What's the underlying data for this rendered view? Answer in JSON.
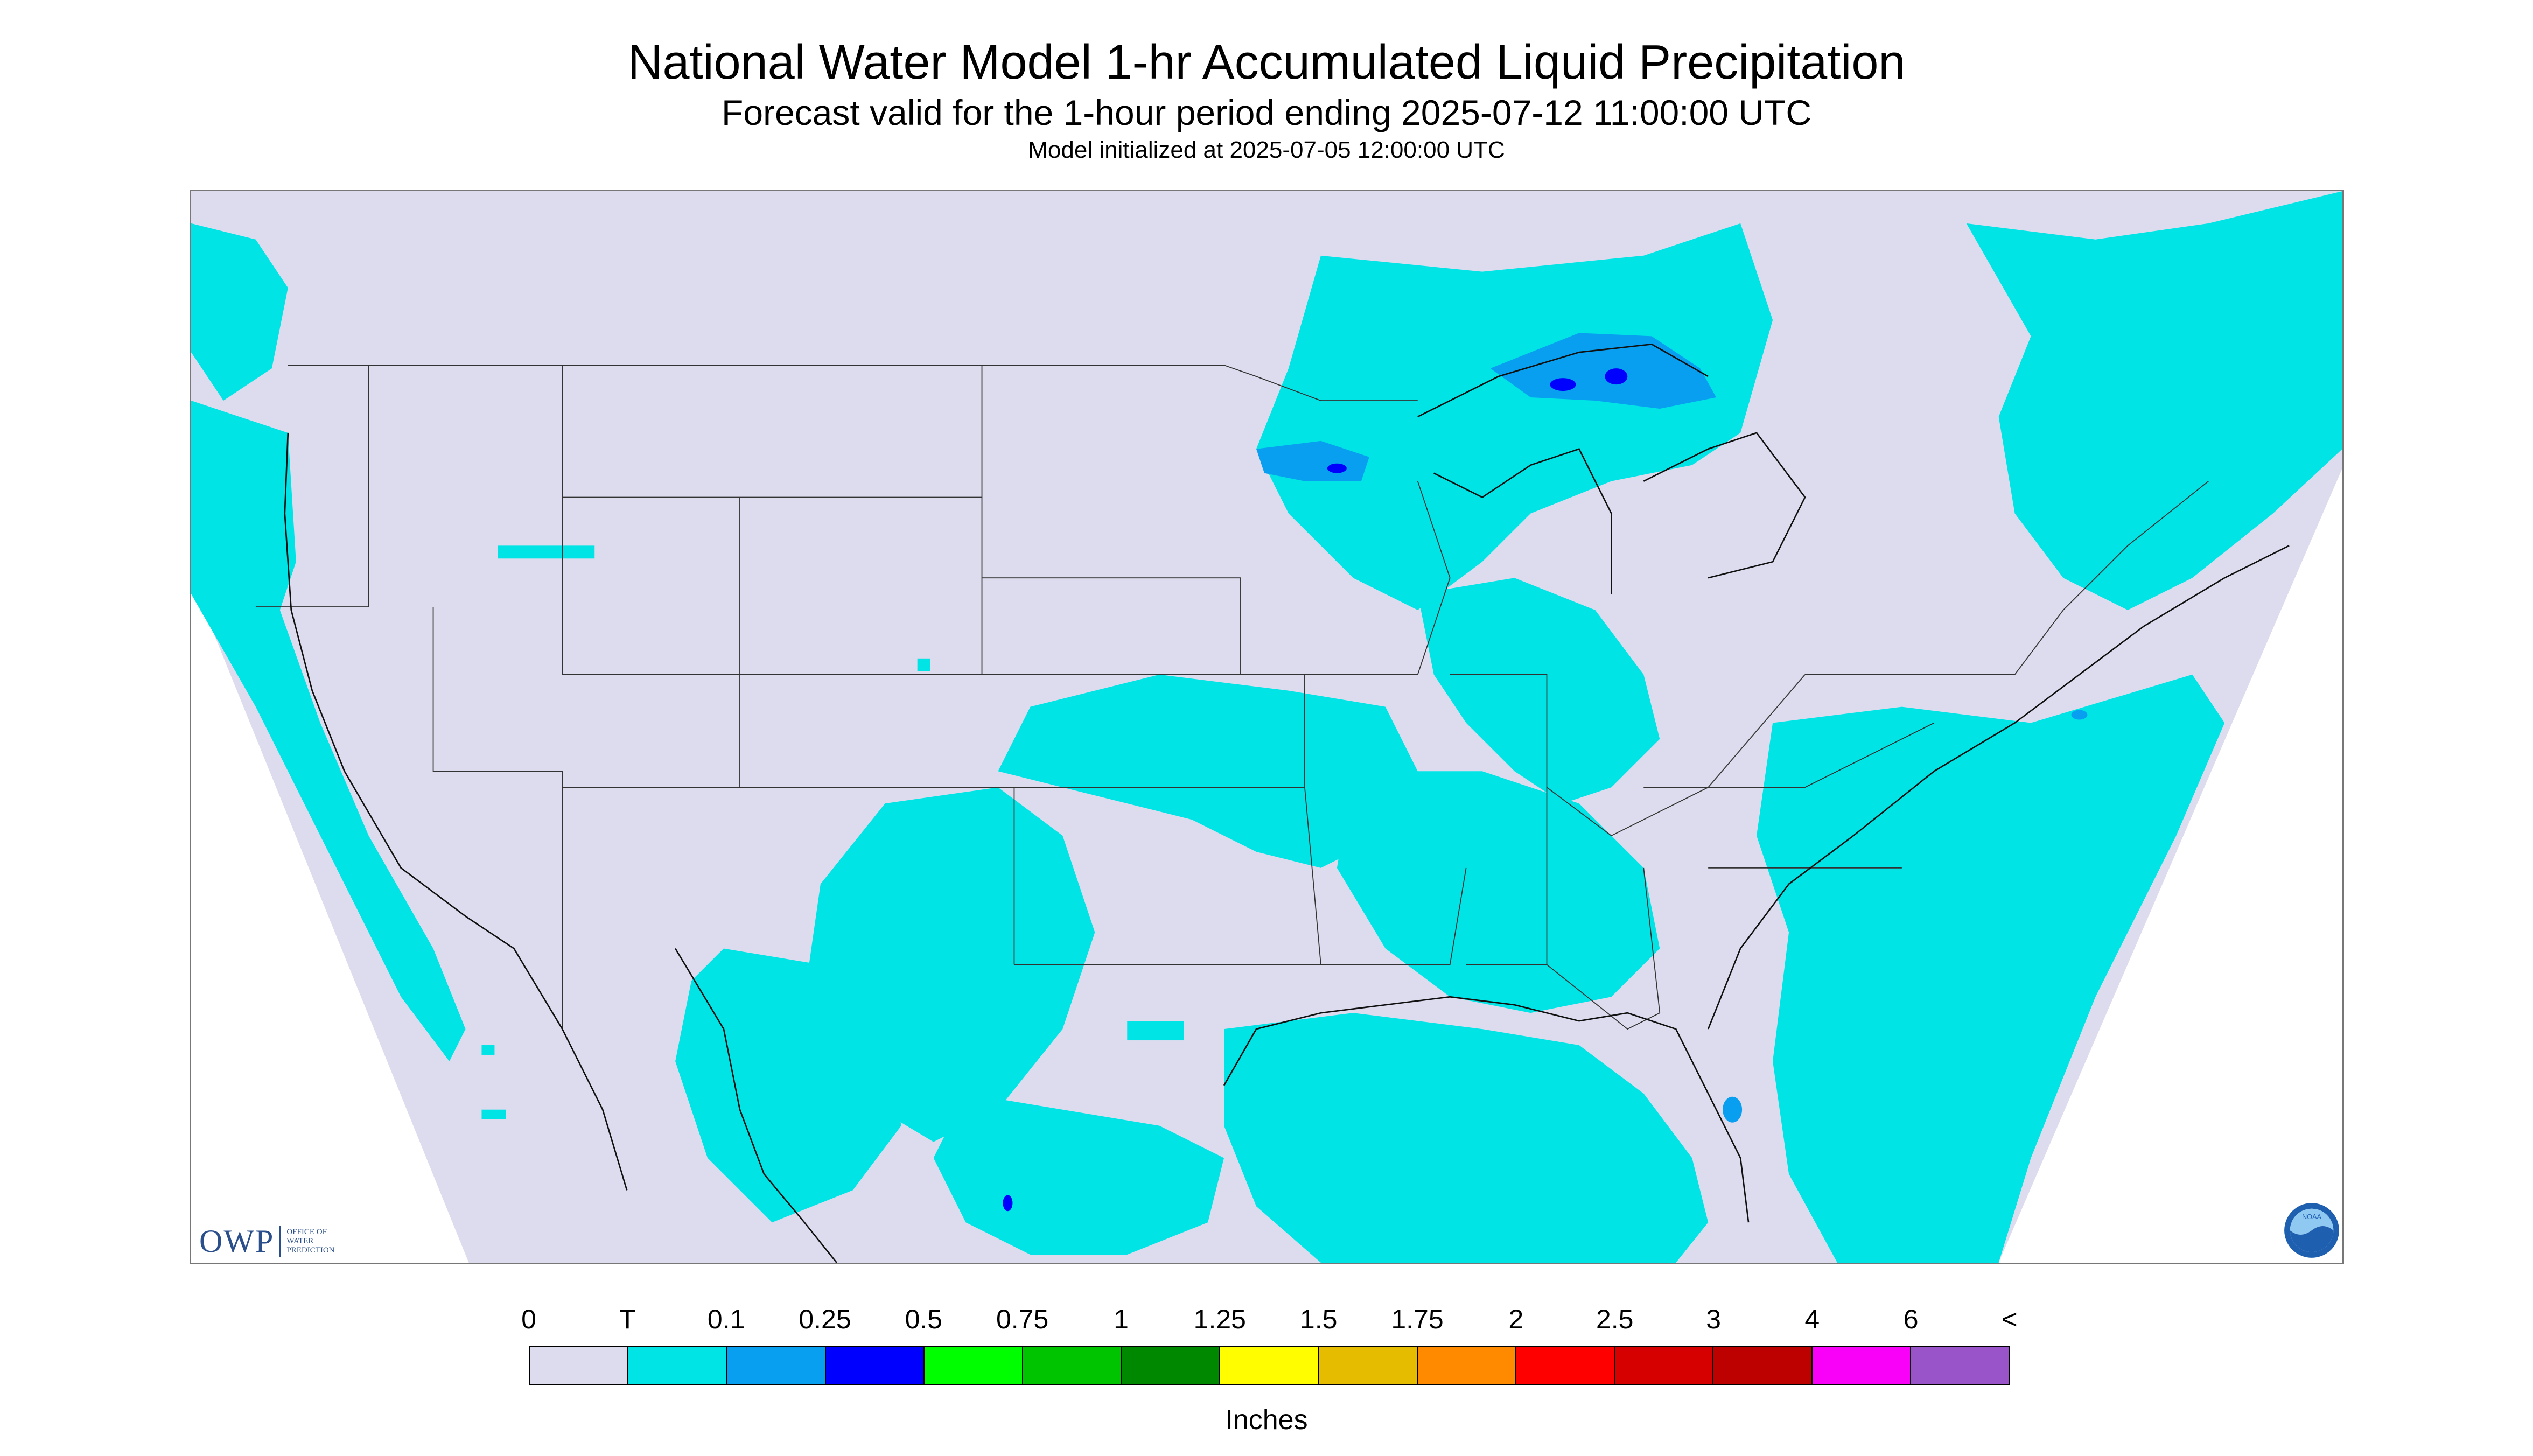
{
  "header": {
    "title": "National Water Model 1-hr Accumulated Liquid Precipitation",
    "subtitle": "Forecast valid for the 1-hour period ending 2025-07-12 11:00:00 UTC",
    "init_line": "Model initialized at 2025-07-05 12:00:00 UTC"
  },
  "logos": {
    "owp_mark": "OWP",
    "owp_text": [
      "OFFICE OF",
      "WATER",
      "PREDICTION"
    ],
    "noaa_text": "NOAA"
  },
  "legend": {
    "labels": [
      "0",
      "T",
      "0.1",
      "0.25",
      "0.5",
      "0.75",
      "1",
      "1.25",
      "1.5",
      "1.75",
      "2",
      "2.5",
      "3",
      "4",
      "6",
      "<"
    ],
    "colors": [
      "#dcdcee",
      "#00e4e6",
      "#089ff0",
      "#0000ff",
      "#00fd00",
      "#00c400",
      "#008900",
      "#fffd00",
      "#e5bc00",
      "#ff8a00",
      "#ff0000",
      "#d60000",
      "#bd0000",
      "#f900f9",
      "#9954c9"
    ],
    "units": "Inches"
  },
  "map": {
    "colors": {
      "background": "#dcdcee",
      "trace": "#00e4e6",
      "light": "#089ff0",
      "heavy": "#0000ff",
      "outside": "#ffffff",
      "borders": "#333333"
    }
  }
}
